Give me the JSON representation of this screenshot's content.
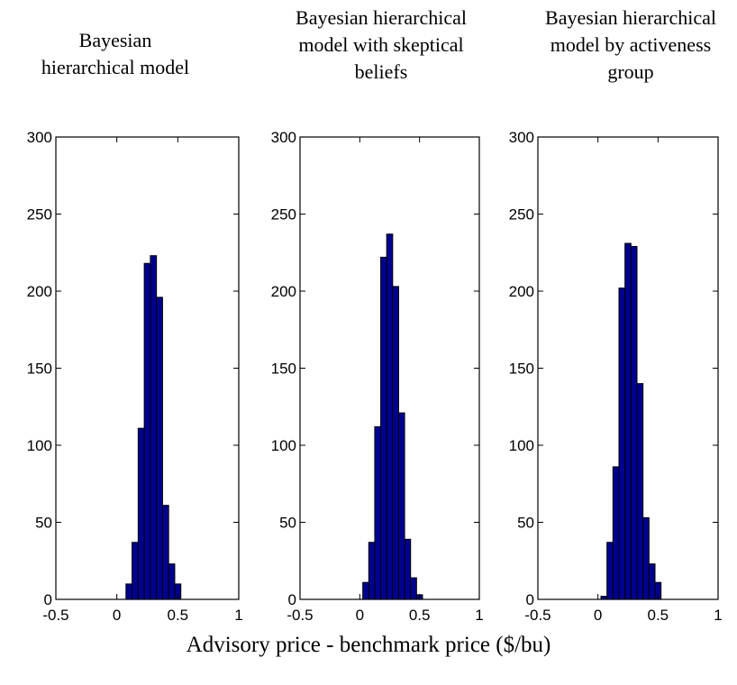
{
  "chart_data": [
    {
      "type": "bar",
      "title": [
        "Bayesian",
        "hierarchical  model"
      ],
      "xlim": [
        -0.5,
        1
      ],
      "ylim": [
        0,
        300
      ],
      "xticks": [
        "-0.5",
        "0",
        "0.5",
        "1"
      ],
      "yticks": [
        "0",
        "50",
        "100",
        "150",
        "200",
        "250",
        "300"
      ],
      "bin_width": 0.05,
      "bins": [
        {
          "x": 0.1,
          "value": 10
        },
        {
          "x": 0.15,
          "value": 37
        },
        {
          "x": 0.2,
          "value": 111
        },
        {
          "x": 0.25,
          "value": 218
        },
        {
          "x": 0.3,
          "value": 223
        },
        {
          "x": 0.35,
          "value": 196
        },
        {
          "x": 0.4,
          "value": 61
        },
        {
          "x": 0.45,
          "value": 23
        },
        {
          "x": 0.5,
          "value": 10
        }
      ]
    },
    {
      "type": "bar",
      "title": [
        "Bayesian hierarchical",
        "model with skeptical",
        "beliefs"
      ],
      "xlim": [
        -0.5,
        1
      ],
      "ylim": [
        0,
        300
      ],
      "xticks": [
        "-0.5",
        "0",
        "0.5",
        "1"
      ],
      "yticks": [
        "0",
        "50",
        "100",
        "150",
        "200",
        "250",
        "300"
      ],
      "bin_width": 0.05,
      "bins": [
        {
          "x": 0.05,
          "value": 11
        },
        {
          "x": 0.1,
          "value": 37
        },
        {
          "x": 0.15,
          "value": 112
        },
        {
          "x": 0.2,
          "value": 222
        },
        {
          "x": 0.25,
          "value": 237
        },
        {
          "x": 0.3,
          "value": 203
        },
        {
          "x": 0.35,
          "value": 121
        },
        {
          "x": 0.4,
          "value": 39
        },
        {
          "x": 0.45,
          "value": 14
        },
        {
          "x": 0.5,
          "value": 3
        }
      ]
    },
    {
      "type": "bar",
      "title": [
        "Bayesian hierarchical",
        "model by activeness",
        "group"
      ],
      "xlim": [
        -0.5,
        1
      ],
      "ylim": [
        0,
        300
      ],
      "xticks": [
        "-0.5",
        "0",
        "0.5",
        "1"
      ],
      "yticks": [
        "0",
        "50",
        "100",
        "150",
        "200",
        "250",
        "300"
      ],
      "bin_width": 0.05,
      "bins": [
        {
          "x": 0.05,
          "value": 2
        },
        {
          "x": 0.1,
          "value": 37
        },
        {
          "x": 0.15,
          "value": 86
        },
        {
          "x": 0.2,
          "value": 202
        },
        {
          "x": 0.25,
          "value": 231
        },
        {
          "x": 0.3,
          "value": 229
        },
        {
          "x": 0.35,
          "value": 140
        },
        {
          "x": 0.4,
          "value": 53
        },
        {
          "x": 0.45,
          "value": 23
        },
        {
          "x": 0.5,
          "value": 11
        }
      ]
    }
  ],
  "xlabel": "Advisory price - benchmark price ($/bu)"
}
